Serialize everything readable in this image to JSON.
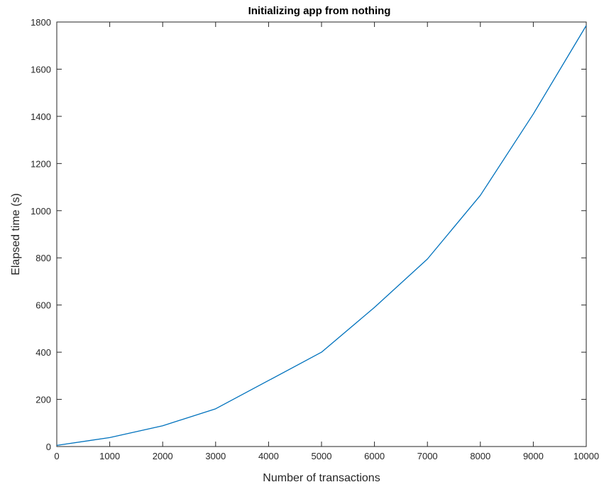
{
  "chart_data": {
    "type": "line",
    "title": "Initializing app from nothing",
    "xlabel": "Number of transactions",
    "ylabel": "Elapsed time (s)",
    "xlim": [
      0,
      10000
    ],
    "ylim": [
      0,
      1800
    ],
    "xticks": [
      0,
      1000,
      2000,
      3000,
      4000,
      5000,
      6000,
      7000,
      8000,
      9000,
      10000
    ],
    "yticks": [
      0,
      200,
      400,
      600,
      800,
      1000,
      1200,
      1400,
      1600,
      1800
    ],
    "grid": false,
    "series": [
      {
        "color": "#0072bd",
        "x": [
          0,
          1000,
          2000,
          3000,
          4000,
          5000,
          6000,
          7000,
          8000,
          9000,
          10000
        ],
        "y": [
          5,
          38,
          88,
          160,
          280,
          400,
          590,
          795,
          1065,
          1410,
          1785
        ]
      }
    ]
  },
  "colors": {
    "axis": "#262626",
    "line": "#0072bd",
    "background": "#ffffff"
  }
}
